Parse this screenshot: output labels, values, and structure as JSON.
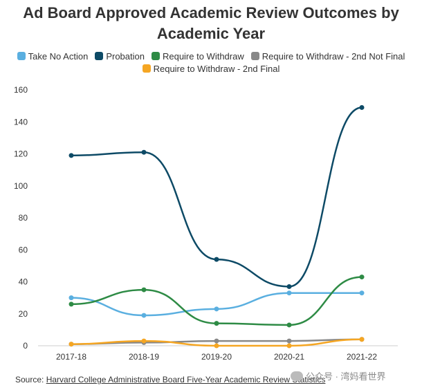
{
  "chart_data": {
    "type": "line",
    "title": "Ad Board Approved Academic Review Outcomes by Academic Year",
    "categories": [
      "2017-18",
      "2018-19",
      "2019-20",
      "2020-21",
      "2021-22"
    ],
    "ylim": [
      0,
      160
    ],
    "yticks": [
      0,
      20,
      40,
      60,
      80,
      100,
      120,
      140,
      160
    ],
    "grid": false,
    "legend_position": "top",
    "series": [
      {
        "name": "Take No Action",
        "color": "#5aafe0",
        "values": [
          30,
          19,
          23,
          33,
          33
        ]
      },
      {
        "name": "Probation",
        "color": "#0d4a66",
        "values": [
          119,
          121,
          54,
          37,
          149
        ]
      },
      {
        "name": "Require to Withdraw",
        "color": "#2e8b45",
        "values": [
          26,
          35,
          14,
          13,
          43
        ]
      },
      {
        "name": "Require to Withdraw - 2nd Not Final",
        "color": "#888888",
        "values": [
          1,
          2,
          3,
          3,
          4
        ]
      },
      {
        "name": "Require to Withdraw - 2nd Final",
        "color": "#f5a623",
        "values": [
          1,
          3,
          0,
          0,
          4
        ]
      }
    ]
  },
  "title_lines": [
    "Ad Board Approved Academic Review Outcomes by",
    "Academic Year"
  ],
  "source": {
    "prefix": "Source: ",
    "link_text": "Harvard College Administrative Board Five-Year Academic Review Statistics"
  },
  "watermark": "公众号 · 湾妈看世界"
}
